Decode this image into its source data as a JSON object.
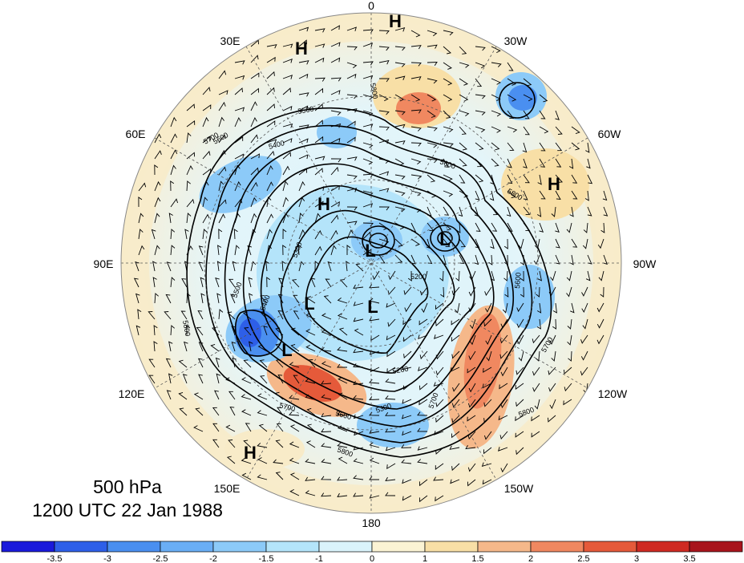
{
  "title": {
    "level": "500 hPa",
    "time": "1200 UTC 22 Jan 1988"
  },
  "longitude_labels": [
    "0",
    "30W",
    "60W",
    "90W",
    "120W",
    "150W",
    "180",
    "150E",
    "120E",
    "90E",
    "60E",
    "30E"
  ],
  "pressure_centers": [
    {
      "label": "H",
      "lon_label": "near 0"
    },
    {
      "label": "H",
      "lon_label": "near 30E"
    },
    {
      "label": "H",
      "lon_label": "near 60W"
    },
    {
      "label": "H",
      "lon_label": "near 60E"
    },
    {
      "label": "H",
      "lon_label": "near 150E"
    },
    {
      "label": "L",
      "lon_label": "pole region"
    },
    {
      "label": "L",
      "lon_label": "near 90W"
    },
    {
      "label": "L",
      "lon_label": "near 120E"
    },
    {
      "label": "L",
      "lon_label": "pole region"
    },
    {
      "label": "L",
      "lon_label": "near 120E"
    }
  ],
  "contour_labels": [
    "5800",
    "5700",
    "5600",
    "5500",
    "5400",
    "5300",
    "5200",
    "5600",
    "5700",
    "5800",
    "5800",
    "5700",
    "5600",
    "5500",
    "5400",
    "5300",
    "5200",
    "5800",
    "5700",
    "5600",
    "5800"
  ],
  "colorbar": {
    "ticks": [
      "-3.5",
      "-3",
      "-2.5",
      "-2",
      "-1.5",
      "-1",
      "0",
      "1",
      "1.5",
      "2",
      "2.5",
      "3",
      "3.5"
    ],
    "colors": [
      "#1a1adb",
      "#2e5fe8",
      "#4a8ff0",
      "#6aaef5",
      "#8ccaf8",
      "#b4e4fa",
      "#daf3fb",
      "#fbf3d4",
      "#f8dfa6",
      "#f5b88a",
      "#f08860",
      "#e55a3a",
      "#cf2a22",
      "#a8141c"
    ]
  }
}
